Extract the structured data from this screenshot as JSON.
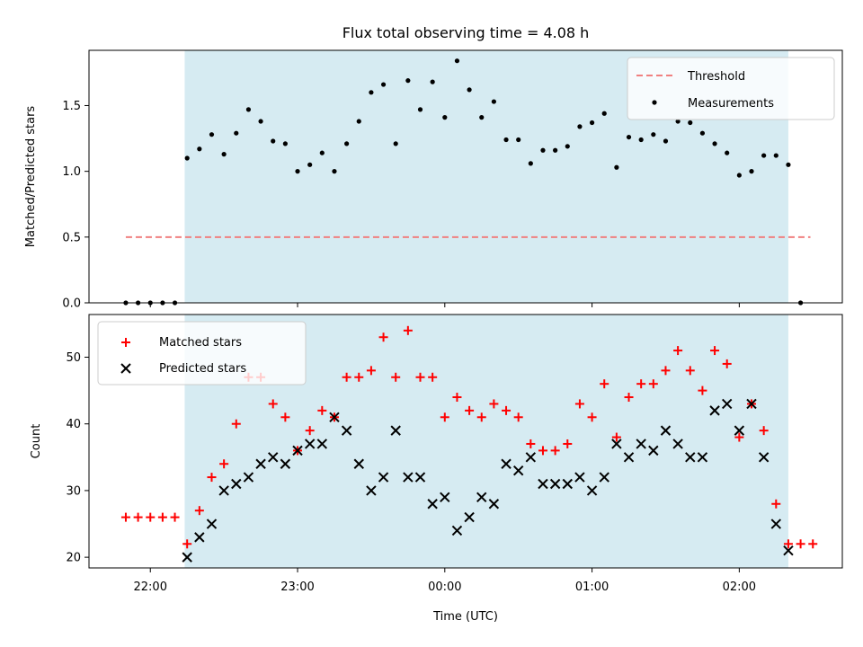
{
  "chart_data": [
    {
      "type": "scatter",
      "title": "Flux total observing time = 4.08 h",
      "xlabel": "",
      "ylabel": "Matched/Predicted stars",
      "xlim": [
        21.58,
        2.7
      ],
      "ylim": [
        0.0,
        1.92
      ],
      "yticks": [
        0.0,
        0.5,
        1.0,
        1.5
      ],
      "ytick_labels": [
        "0.0",
        "0.5",
        "1.0",
        "1.5"
      ],
      "shaded_interval": [
        "22:14",
        "02:20"
      ],
      "legend_position": "top-right",
      "series": [
        {
          "name": "Threshold",
          "style": "dashed-line",
          "color": "#f08080",
          "x": [
            "21:50",
            "02:29"
          ],
          "y": [
            0.5,
            0.5
          ]
        },
        {
          "name": "Measurements",
          "style": "dot",
          "color": "#000000",
          "x": [
            "21:50",
            "21:55",
            "22:00",
            "22:05",
            "22:10",
            "22:15",
            "22:20",
            "22:25",
            "22:30",
            "22:35",
            "22:40",
            "22:45",
            "22:50",
            "22:55",
            "23:00",
            "23:05",
            "23:10",
            "23:15",
            "23:20",
            "23:25",
            "23:30",
            "23:35",
            "23:40",
            "23:45",
            "23:50",
            "23:55",
            "00:00",
            "00:05",
            "00:10",
            "00:15",
            "00:20",
            "00:25",
            "00:30",
            "00:35",
            "00:40",
            "00:45",
            "00:50",
            "00:55",
            "01:00",
            "01:05",
            "01:10",
            "01:15",
            "01:20",
            "01:25",
            "01:30",
            "01:35",
            "01:40",
            "01:45",
            "01:50",
            "01:55",
            "02:00",
            "02:05",
            "02:10",
            "02:15",
            "02:20",
            "02:25"
          ],
          "y": [
            0.0,
            0.0,
            0.0,
            0.0,
            0.0,
            1.1,
            1.17,
            1.28,
            1.13,
            1.29,
            1.47,
            1.38,
            1.23,
            1.21,
            1.0,
            1.05,
            1.14,
            1.0,
            1.21,
            1.38,
            1.6,
            1.66,
            1.21,
            1.69,
            1.47,
            1.68,
            1.41,
            1.84,
            1.62,
            1.41,
            1.53,
            1.24,
            1.24,
            1.06,
            1.16,
            1.16,
            1.19,
            1.34,
            1.37,
            1.44,
            1.03,
            1.26,
            1.24,
            1.28,
            1.23,
            1.38,
            1.37,
            1.29,
            1.21,
            1.14,
            0.97,
            1.0,
            1.12,
            1.12,
            1.05,
            0.0
          ]
        }
      ]
    },
    {
      "type": "scatter",
      "title": "",
      "xlabel": "Time (UTC)",
      "ylabel": "Count",
      "xlim": [
        21.58,
        2.7
      ],
      "ylim": [
        18.4,
        56.4
      ],
      "yticks": [
        20,
        30,
        40,
        50
      ],
      "ytick_labels": [
        "20",
        "30",
        "40",
        "50"
      ],
      "xticks": [
        "22:00",
        "23:00",
        "00:00",
        "01:00",
        "02:00"
      ],
      "shaded_interval": [
        "22:14",
        "02:20"
      ],
      "legend_position": "top-left",
      "series": [
        {
          "name": "Matched stars",
          "style": "plus",
          "color": "#ff0000",
          "x": [
            "21:50",
            "21:55",
            "22:00",
            "22:05",
            "22:10",
            "22:15",
            "22:20",
            "22:25",
            "22:30",
            "22:35",
            "22:40",
            "22:45",
            "22:50",
            "22:55",
            "23:00",
            "23:05",
            "23:10",
            "23:15",
            "23:20",
            "23:25",
            "23:30",
            "23:35",
            "23:40",
            "23:45",
            "23:50",
            "23:55",
            "00:00",
            "00:05",
            "00:10",
            "00:15",
            "00:20",
            "00:25",
            "00:30",
            "00:35",
            "00:40",
            "00:45",
            "00:50",
            "00:55",
            "01:00",
            "01:05",
            "01:10",
            "01:15",
            "01:20",
            "01:25",
            "01:30",
            "01:35",
            "01:40",
            "01:45",
            "01:50",
            "01:55",
            "02:00",
            "02:05",
            "02:10",
            "02:15",
            "02:20",
            "02:25",
            "02:30"
          ],
          "y": [
            26,
            26,
            26,
            26,
            26,
            22,
            27,
            32,
            34,
            40,
            47,
            47,
            43,
            41,
            36,
            39,
            42,
            41,
            47,
            47,
            48,
            53,
            47,
            54,
            47,
            47,
            41,
            44,
            42,
            41,
            43,
            42,
            41,
            37,
            36,
            36,
            37,
            43,
            41,
            46,
            38,
            44,
            46,
            46,
            48,
            51,
            48,
            45,
            51,
            49,
            38,
            43,
            39,
            28,
            22,
            22,
            22
          ]
        },
        {
          "name": "Predicted stars",
          "style": "x",
          "color": "#000000",
          "x": [
            "22:15",
            "22:20",
            "22:25",
            "22:30",
            "22:35",
            "22:40",
            "22:45",
            "22:50",
            "22:55",
            "23:00",
            "23:05",
            "23:10",
            "23:15",
            "23:20",
            "23:25",
            "23:30",
            "23:35",
            "23:40",
            "23:45",
            "23:50",
            "23:55",
            "00:00",
            "00:05",
            "00:10",
            "00:15",
            "00:20",
            "00:25",
            "00:30",
            "00:35",
            "00:40",
            "00:45",
            "00:50",
            "00:55",
            "01:00",
            "01:05",
            "01:10",
            "01:15",
            "01:20",
            "01:25",
            "01:30",
            "01:35",
            "01:40",
            "01:45",
            "01:50",
            "01:55",
            "02:00",
            "02:05",
            "02:10",
            "02:15",
            "02:20"
          ],
          "y": [
            20,
            23,
            25,
            30,
            31,
            32,
            34,
            35,
            34,
            36,
            37,
            37,
            41,
            39,
            34,
            30,
            32,
            39,
            32,
            32,
            28,
            29,
            24,
            26,
            29,
            28,
            34,
            33,
            35,
            31,
            31,
            31,
            32,
            30,
            32,
            37,
            35,
            37,
            36,
            39,
            37,
            35,
            35,
            42,
            43,
            39,
            43,
            35,
            25,
            21
          ]
        }
      ]
    }
  ]
}
